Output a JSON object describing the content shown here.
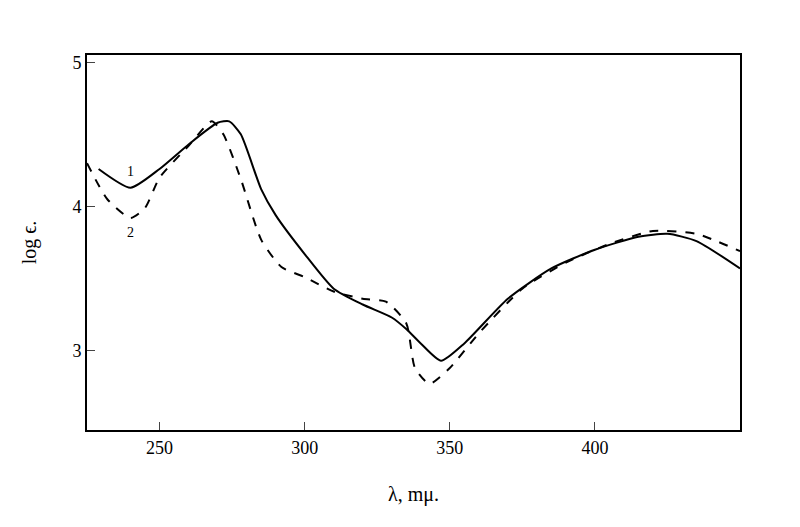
{
  "chart_data": {
    "type": "line",
    "x_label": "λ, mμ.",
    "y_label": "log ϵ.",
    "xlim": [
      225,
      450
    ],
    "ylim": [
      2.45,
      5.05
    ],
    "xticks": [
      250,
      300,
      350,
      400
    ],
    "yticks": [
      3,
      4,
      5
    ],
    "grid": false,
    "series": [
      {
        "color": "#000000",
        "line_style": "solid",
        "x": [
          229,
          240,
          250,
          260,
          270,
          274,
          278,
          285,
          290,
          300,
          310,
          320,
          330,
          335,
          340,
          347,
          355,
          370,
          385,
          400,
          415,
          425,
          435,
          450
        ],
        "values": [
          4.26,
          4.13,
          4.26,
          4.43,
          4.58,
          4.59,
          4.5,
          4.12,
          3.94,
          3.67,
          3.43,
          3.32,
          3.23,
          3.15,
          3.05,
          2.93,
          3.05,
          3.36,
          3.57,
          3.7,
          3.79,
          3.81,
          3.76,
          3.57
        ]
      },
      {
        "color": "#000000",
        "line_style": "dash",
        "x": [
          225,
          232,
          240,
          245,
          250,
          260,
          268,
          272,
          278,
          285,
          292,
          300,
          310,
          320,
          328,
          335,
          338,
          343,
          350,
          360,
          375,
          390,
          405,
          420,
          435,
          450
        ],
        "values": [
          4.3,
          4.05,
          3.92,
          3.99,
          4.2,
          4.42,
          4.59,
          4.5,
          4.19,
          3.77,
          3.58,
          3.51,
          3.41,
          3.36,
          3.34,
          3.19,
          2.88,
          2.77,
          2.88,
          3.12,
          3.43,
          3.61,
          3.74,
          3.83,
          3.81,
          3.69
        ]
      }
    ],
    "annotations": [
      {
        "text": "1",
        "x": 240,
        "y": 4.24
      },
      {
        "text": "2",
        "x": 240,
        "y": 3.82
      }
    ]
  }
}
